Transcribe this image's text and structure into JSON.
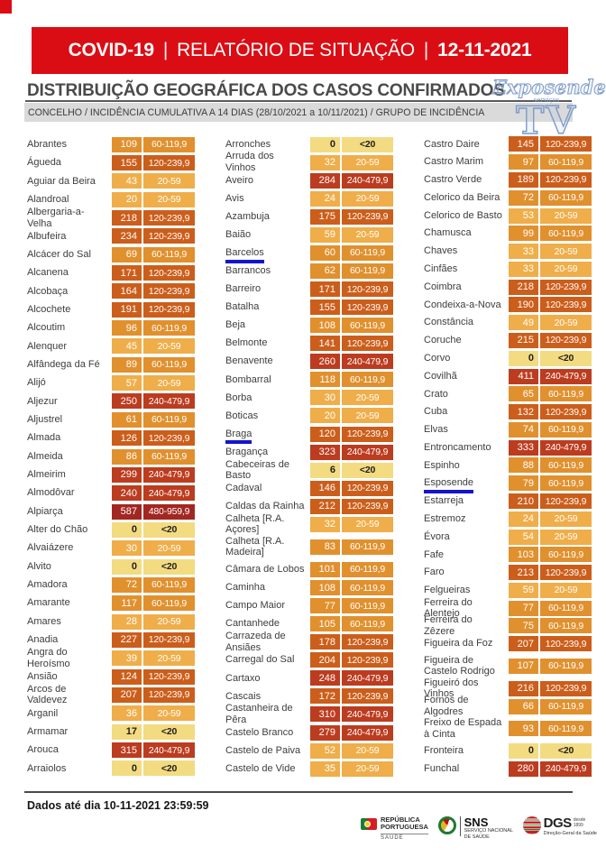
{
  "header_bar": {
    "segments": [
      "COVID-19",
      "RELATÓRIO DE SITUAÇÃO",
      "12-11-2021"
    ],
    "separator": "|",
    "bg_color": "#db0d14"
  },
  "title": "DISTRIBUIÇÃO GEOGRÁFICA DOS CASOS CONFIRMADOS",
  "subtitle": "CONCELHO / INCIDÊNCIA CUMULATIVA A 14 DIAS (28/10/2021 a 10/11/2021) / GRUPO DE INCIDÊNCIA",
  "watermark": {
    "name": "Exposende",
    "sub": "serviços",
    "tv": "TV",
    "color": "#7d9bc8"
  },
  "incidence_levels": {
    "<20": {
      "bg": "#f3db81",
      "fg": "#1f1f1f"
    },
    "20-59": {
      "bg": "#efae4a",
      "fg": "#ffffff"
    },
    "60-119,9": {
      "bg": "#e1902e",
      "fg": "#ffffff"
    },
    "120-239,9": {
      "bg": "#cc5e1b",
      "fg": "#ffffff"
    },
    "240-479,9": {
      "bg": "#bc3c20",
      "fg": "#ffffff"
    },
    "480-959,9": {
      "bg": "#a22722",
      "fg": "#ffffff"
    }
  },
  "columns": [
    [
      {
        "name": "Abrantes",
        "value": "109",
        "range": "60-119,9"
      },
      {
        "name": "Águeda",
        "value": "155",
        "range": "120-239,9"
      },
      {
        "name": "Aguiar da Beira",
        "value": "43",
        "range": "20-59"
      },
      {
        "name": "Alandroal",
        "value": "20",
        "range": "20-59"
      },
      {
        "name": "Albergaria-a-Velha",
        "value": "218",
        "range": "120-239,9"
      },
      {
        "name": "Albufeira",
        "value": "234",
        "range": "120-239,9"
      },
      {
        "name": "Alcácer do Sal",
        "value": "69",
        "range": "60-119,9"
      },
      {
        "name": "Alcanena",
        "value": "171",
        "range": "120-239,9"
      },
      {
        "name": "Alcobaça",
        "value": "164",
        "range": "120-239,9"
      },
      {
        "name": "Alcochete",
        "value": "191",
        "range": "120-239,9"
      },
      {
        "name": "Alcoutim",
        "value": "96",
        "range": "60-119,9"
      },
      {
        "name": "Alenquer",
        "value": "45",
        "range": "20-59"
      },
      {
        "name": "Alfândega da Fé",
        "value": "89",
        "range": "60-119,9"
      },
      {
        "name": "Alijó",
        "value": "57",
        "range": "20-59"
      },
      {
        "name": "Aljezur",
        "value": "250",
        "range": "240-479,9"
      },
      {
        "name": "Aljustrel",
        "value": "61",
        "range": "60-119,9"
      },
      {
        "name": "Almada",
        "value": "126",
        "range": "120-239,9"
      },
      {
        "name": "Almeida",
        "value": "86",
        "range": "60-119,9"
      },
      {
        "name": "Almeirim",
        "value": "299",
        "range": "240-479,9"
      },
      {
        "name": "Almodôvar",
        "value": "240",
        "range": "240-479,9"
      },
      {
        "name": "Alpiarça",
        "value": "587",
        "range": "480-959,9"
      },
      {
        "name": "Alter do Chão",
        "value": "0",
        "range": "<20"
      },
      {
        "name": "Alvaiázere",
        "value": "30",
        "range": "20-59"
      },
      {
        "name": "Alvito",
        "value": "0",
        "range": "<20"
      },
      {
        "name": "Amadora",
        "value": "72",
        "range": "60-119,9"
      },
      {
        "name": "Amarante",
        "value": "117",
        "range": "60-119,9"
      },
      {
        "name": "Amares",
        "value": "28",
        "range": "20-59"
      },
      {
        "name": "Anadia",
        "value": "227",
        "range": "120-239,9"
      },
      {
        "name": "Angra do Heroísmo",
        "value": "39",
        "range": "20-59"
      },
      {
        "name": "Ansião",
        "value": "124",
        "range": "120-239,9"
      },
      {
        "name": "Arcos de Valdevez",
        "value": "207",
        "range": "120-239,9"
      },
      {
        "name": "Arganil",
        "value": "36",
        "range": "20-59"
      },
      {
        "name": "Armamar",
        "value": "17",
        "range": "<20"
      },
      {
        "name": "Arouca",
        "value": "315",
        "range": "240-479,9"
      },
      {
        "name": "Arraiolos",
        "value": "0",
        "range": "<20"
      }
    ],
    [
      {
        "name": "Arronches",
        "value": "0",
        "range": "<20"
      },
      {
        "name": "Arruda dos Vinhos",
        "value": "32",
        "range": "20-59"
      },
      {
        "name": "Aveiro",
        "value": "284",
        "range": "240-479,9"
      },
      {
        "name": "Avis",
        "value": "24",
        "range": "20-59"
      },
      {
        "name": "Azambuja",
        "value": "175",
        "range": "120-239,9"
      },
      {
        "name": "Baião",
        "value": "59",
        "range": "20-59"
      },
      {
        "name": "Barcelos",
        "value": "60",
        "range": "60-119,9",
        "highlight": true
      },
      {
        "name": "Barrancos",
        "value": "62",
        "range": "60-119,9"
      },
      {
        "name": "Barreiro",
        "value": "171",
        "range": "120-239,9"
      },
      {
        "name": "Batalha",
        "value": "155",
        "range": "120-239,9"
      },
      {
        "name": "Beja",
        "value": "108",
        "range": "60-119,9"
      },
      {
        "name": "Belmonte",
        "value": "141",
        "range": "120-239,9"
      },
      {
        "name": "Benavente",
        "value": "260",
        "range": "240-479,9"
      },
      {
        "name": "Bombarral",
        "value": "118",
        "range": "60-119,9"
      },
      {
        "name": "Borba",
        "value": "30",
        "range": "20-59"
      },
      {
        "name": "Boticas",
        "value": "20",
        "range": "20-59"
      },
      {
        "name": "Braga",
        "value": "120",
        "range": "120-239,9",
        "highlight": true
      },
      {
        "name": "Bragança",
        "value": "323",
        "range": "240-479,9"
      },
      {
        "name": "Cabeceiras de Basto",
        "value": "6",
        "range": "<20"
      },
      {
        "name": "Cadaval",
        "value": "146",
        "range": "120-239,9"
      },
      {
        "name": "Caldas da Rainha",
        "value": "212",
        "range": "120-239,9"
      },
      {
        "name": "Calheta [R.A. Açores]",
        "value": "32",
        "range": "20-59"
      },
      {
        "name": "Calheta [R.A. Madeira]",
        "value": "83",
        "range": "60-119,9",
        "tall": true
      },
      {
        "name": "Câmara de Lobos",
        "value": "101",
        "range": "60-119,9"
      },
      {
        "name": "Caminha",
        "value": "108",
        "range": "60-119,9"
      },
      {
        "name": "Campo Maior",
        "value": "77",
        "range": "60-119,9"
      },
      {
        "name": "Cantanhede",
        "value": "105",
        "range": "60-119,9"
      },
      {
        "name": "Carrazeda de Ansiães",
        "value": "178",
        "range": "120-239,9"
      },
      {
        "name": "Carregal do Sal",
        "value": "204",
        "range": "120-239,9"
      },
      {
        "name": "Cartaxo",
        "value": "248",
        "range": "240-479,9"
      },
      {
        "name": "Cascais",
        "value": "172",
        "range": "120-239,9"
      },
      {
        "name": "Castanheira de Pêra",
        "value": "310",
        "range": "240-479,9"
      },
      {
        "name": "Castelo Branco",
        "value": "279",
        "range": "240-479,9"
      },
      {
        "name": "Castelo de Paiva",
        "value": "52",
        "range": "20-59"
      },
      {
        "name": "Castelo de Vide",
        "value": "35",
        "range": "20-59"
      }
    ],
    [
      {
        "name": "Castro Daire",
        "value": "145",
        "range": "120-239,9"
      },
      {
        "name": "Castro Marim",
        "value": "97",
        "range": "60-119,9"
      },
      {
        "name": "Castro Verde",
        "value": "189",
        "range": "120-239,9"
      },
      {
        "name": "Celorico da Beira",
        "value": "72",
        "range": "60-119,9"
      },
      {
        "name": "Celorico de Basto",
        "value": "53",
        "range": "20-59"
      },
      {
        "name": "Chamusca",
        "value": "99",
        "range": "60-119,9"
      },
      {
        "name": "Chaves",
        "value": "33",
        "range": "20-59"
      },
      {
        "name": "Cinfães",
        "value": "33",
        "range": "20-59"
      },
      {
        "name": "Coimbra",
        "value": "218",
        "range": "120-239,9"
      },
      {
        "name": "Condeixa-a-Nova",
        "value": "190",
        "range": "120-239,9"
      },
      {
        "name": "Constância",
        "value": "49",
        "range": "20-59"
      },
      {
        "name": "Coruche",
        "value": "215",
        "range": "120-239,9"
      },
      {
        "name": "Corvo",
        "value": "0",
        "range": "<20"
      },
      {
        "name": "Covilhã",
        "value": "411",
        "range": "240-479,9"
      },
      {
        "name": "Crato",
        "value": "65",
        "range": "60-119,9"
      },
      {
        "name": "Cuba",
        "value": "132",
        "range": "120-239,9"
      },
      {
        "name": "Elvas",
        "value": "74",
        "range": "60-119,9"
      },
      {
        "name": "Entroncamento",
        "value": "333",
        "range": "240-479,9"
      },
      {
        "name": "Espinho",
        "value": "88",
        "range": "60-119,9"
      },
      {
        "name": "Esposende",
        "value": "79",
        "range": "60-119,9",
        "highlight": true
      },
      {
        "name": "Estarreja",
        "value": "210",
        "range": "120-239,9"
      },
      {
        "name": "Estremoz",
        "value": "24",
        "range": "20-59"
      },
      {
        "name": "Évora",
        "value": "54",
        "range": "20-59"
      },
      {
        "name": "Fafe",
        "value": "103",
        "range": "60-119,9"
      },
      {
        "name": "Faro",
        "value": "213",
        "range": "120-239,9"
      },
      {
        "name": "Felgueiras",
        "value": "59",
        "range": "20-59"
      },
      {
        "name": "Ferreira do Alentejo",
        "value": "77",
        "range": "60-119,9"
      },
      {
        "name": "Ferreira do Zêzere",
        "value": "75",
        "range": "60-119,9"
      },
      {
        "name": "Figueira da Foz",
        "value": "207",
        "range": "120-239,9"
      },
      {
        "name": "Figueira de Castelo Rodrigo",
        "value": "107",
        "range": "60-119,9",
        "tall": true
      },
      {
        "name": "Figueiró dos Vinhos",
        "value": "216",
        "range": "120-239,9"
      },
      {
        "name": "Fornos de Algodres",
        "value": "66",
        "range": "60-119,9"
      },
      {
        "name": "Freixo de Espada à Cinta",
        "value": "93",
        "range": "60-119,9",
        "tall": true
      },
      {
        "name": "Fronteira",
        "value": "0",
        "range": "<20"
      },
      {
        "name": "Funchal",
        "value": "280",
        "range": "240-479,9"
      }
    ]
  ],
  "footer": {
    "note": "Dados até dia 10-11-2021 23:59:59",
    "logos": {
      "republica": {
        "line1": "REPÚBLICA",
        "line2": "PORTUGUESA",
        "sub": "SAÚDE"
      },
      "sns": {
        "title": "SNS",
        "sub1": "SERVIÇO NACIONAL",
        "sub2": "DE SAÚDE"
      },
      "dgs": {
        "title": "DGS",
        "since1": "desde",
        "since2": "1899",
        "sub": "Direção-Geral da Saúde"
      }
    }
  }
}
